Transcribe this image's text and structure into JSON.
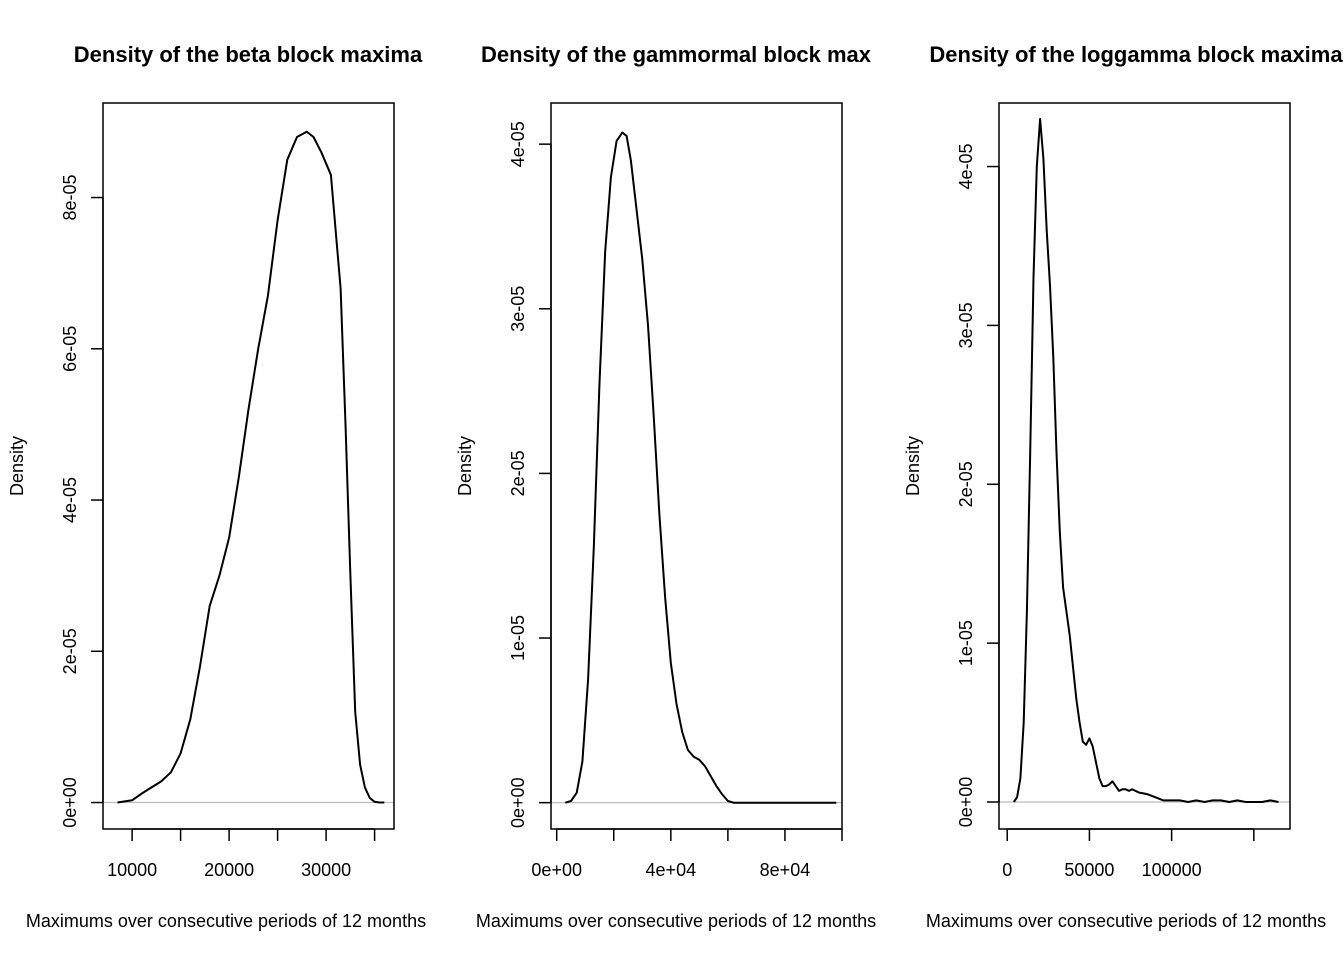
{
  "chart_data": [
    {
      "type": "line",
      "title": "Density of the beta block maxima",
      "xlabel": "Maximums over consecutive periods of 12 months",
      "ylabel": "Density",
      "xlim": [
        7000,
        37000
      ],
      "ylim": [
        -3.5e-06,
        9.25e-05
      ],
      "x_ticks": [
        10000,
        15000,
        20000,
        25000,
        30000,
        35000
      ],
      "x_tick_labels": [
        "10000",
        "",
        "20000",
        "",
        "30000",
        ""
      ],
      "y_ticks": [
        0,
        2e-05,
        4e-05,
        6e-05,
        8e-05
      ],
      "y_tick_labels": [
        "0e+00",
        "2e-05",
        "4e-05",
        "6e-05",
        "8e-05"
      ],
      "baseline": 0,
      "baseline_color": "#bebebe",
      "line_color": "#000000",
      "grid": false,
      "series": [
        {
          "x": [
            8500,
            10000,
            11000,
            12000,
            13000,
            14000,
            15000,
            16000,
            17000,
            18000,
            19000,
            20000,
            21000,
            22000,
            23000,
            24000,
            25000,
            26000,
            27000,
            28000,
            28700,
            29500,
            30500,
            31500,
            32000,
            32500,
            33000,
            33500,
            34000,
            34500,
            35000,
            35500,
            36000
          ],
          "y": [
            0,
            3e-07,
            1.2e-06,
            2e-06,
            2.8e-06,
            4e-06,
            6.5e-06,
            1.1e-05,
            1.8e-05,
            2.6e-05,
            3e-05,
            3.5e-05,
            4.3e-05,
            5.2e-05,
            6e-05,
            6.7e-05,
            7.7e-05,
            8.5e-05,
            8.8e-05,
            8.87e-05,
            8.8e-05,
            8.6e-05,
            8.3e-05,
            6.8e-05,
            5e-05,
            3e-05,
            1.2e-05,
            5e-06,
            2e-06,
            6e-07,
            1e-07,
            0,
            0
          ]
        }
      ]
    },
    {
      "type": "line",
      "title": "Density of the gammormal block max",
      "xlabel": "Maximums over consecutive periods of 12 months",
      "ylabel": "Density",
      "xlim": [
        -2000,
        100000
      ],
      "ylim": [
        -1.6e-06,
        4.25e-05
      ],
      "x_ticks": [
        0,
        20000,
        40000,
        60000,
        80000,
        100000
      ],
      "x_tick_labels": [
        "0e+00",
        "",
        "4e+04",
        "",
        "8e+04",
        ""
      ],
      "y_ticks": [
        0,
        1e-05,
        2e-05,
        3e-05,
        4e-05
      ],
      "y_tick_labels": [
        "0e+00",
        "1e-05",
        "2e-05",
        "3e-05",
        "4e-05"
      ],
      "baseline": 0,
      "baseline_color": "#bebebe",
      "line_color": "#000000",
      "grid": false,
      "series": [
        {
          "x": [
            3000,
            5000,
            7000,
            9000,
            11000,
            13000,
            15000,
            17000,
            19000,
            21000,
            23000,
            24500,
            26000,
            28000,
            30000,
            32000,
            34000,
            36000,
            38000,
            40000,
            42000,
            44000,
            46000,
            48000,
            50000,
            52000,
            54000,
            56000,
            58000,
            60000,
            62000,
            64000,
            66000,
            68000,
            70000,
            72000,
            75000,
            78000,
            80000,
            82000,
            85000,
            88000,
            90000,
            92000,
            95000,
            98000
          ],
          "y": [
            0,
            1e-07,
            6e-07,
            2.5e-06,
            7.5e-06,
            1.55e-05,
            2.55e-05,
            3.35e-05,
            3.8e-05,
            4.02e-05,
            4.07e-05,
            4.05e-05,
            3.9e-05,
            3.6e-05,
            3.3e-05,
            2.9e-05,
            2.35e-05,
            1.75e-05,
            1.25e-05,
            8.5e-06,
            6e-06,
            4.3e-06,
            3.2e-06,
            2.8e-06,
            2.6e-06,
            2.2e-06,
            1.6e-06,
            1e-06,
            5e-07,
            1e-07,
            0,
            0,
            0,
            0,
            0,
            0,
            0,
            0,
            0,
            0,
            0,
            0,
            0,
            0,
            0,
            0
          ]
        }
      ]
    },
    {
      "type": "line",
      "title": "Density of the loggamma block maxima",
      "xlabel": "Maximums over consecutive periods of 12 months",
      "ylabel": "Density",
      "xlim": [
        -5000,
        172000
      ],
      "ylim": [
        -1.7e-06,
        4.4e-05
      ],
      "x_ticks": [
        0,
        50000,
        100000,
        150000
      ],
      "x_tick_labels": [
        "0",
        "50000",
        "100000",
        ""
      ],
      "y_ticks": [
        0,
        1e-05,
        2e-05,
        3e-05,
        4e-05
      ],
      "y_tick_labels": [
        "0e+00",
        "1e-05",
        "2e-05",
        "3e-05",
        "4e-05"
      ],
      "baseline": 0,
      "baseline_color": "#bebebe",
      "line_color": "#000000",
      "grid": false,
      "series": [
        {
          "x": [
            4000,
            6000,
            8000,
            10000,
            12000,
            14000,
            16000,
            18000,
            20000,
            22000,
            24000,
            26000,
            28000,
            30000,
            32000,
            34000,
            36000,
            38000,
            40000,
            42000,
            44000,
            46000,
            48000,
            50000,
            52000,
            54000,
            56000,
            58000,
            60000,
            62000,
            64000,
            66000,
            68000,
            70000,
            72000,
            74000,
            76000,
            78000,
            80000,
            85000,
            90000,
            95000,
            100000,
            105000,
            110000,
            115000,
            120000,
            125000,
            130000,
            135000,
            140000,
            145000,
            150000,
            155000,
            160000,
            165000
          ],
          "y": [
            0,
            3e-07,
            1.5e-06,
            5e-06,
            1.2e-05,
            2.2e-05,
            3.3e-05,
            4e-05,
            4.3e-05,
            4.05e-05,
            3.6e-05,
            3.25e-05,
            2.8e-05,
            2.2e-05,
            1.7e-05,
            1.35e-05,
            1.2e-05,
            1.05e-05,
            8.5e-06,
            6.5e-06,
            5e-06,
            3.8e-06,
            3.6e-06,
            4e-06,
            3.5e-06,
            2.5e-06,
            1.5e-06,
            1e-06,
            1e-06,
            1.1e-06,
            1.3e-06,
            1e-06,
            7e-07,
            8e-07,
            8e-07,
            7e-07,
            8e-07,
            7e-07,
            6e-07,
            5e-07,
            3e-07,
            1e-07,
            1e-07,
            1e-07,
            0,
            1e-07,
            0,
            1e-07,
            1e-07,
            0,
            1e-07,
            0,
            0,
            0,
            1e-07,
            0
          ]
        }
      ]
    }
  ]
}
